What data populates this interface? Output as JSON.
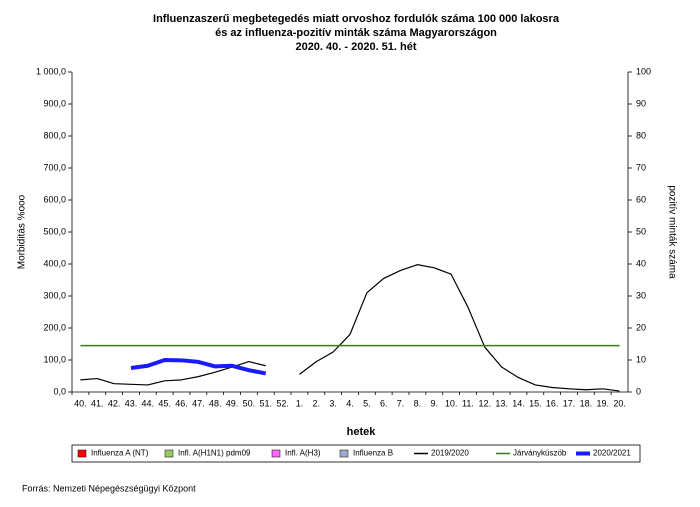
{
  "chart_data": {
    "type": "line",
    "title": [
      "Influenzaszerű megbetegedés miatt orvoshoz fordulók száma 100 000 lakosra",
      "és az influenza-pozitív minták száma Magyarországon",
      "2020. 40. - 2020. 51. hét"
    ],
    "xlabel": "hetek",
    "ylabel": "Morbiditás %ooo",
    "y2label": "pozitív minták száma",
    "source": "Forrás: Nemzeti Népegészségügyi Központ",
    "categories": [
      "40.",
      "41.",
      "42.",
      "43.",
      "44.",
      "45.",
      "46.",
      "47.",
      "48.",
      "49.",
      "50.",
      "51.",
      "52.",
      "1.",
      "2.",
      "3.",
      "4.",
      "5.",
      "6.",
      "7.",
      "8.",
      "9.",
      "10.",
      "11.",
      "12.",
      "13.",
      "14.",
      "15.",
      "16.",
      "17.",
      "18.",
      "19.",
      "20."
    ],
    "ylim": [
      0,
      1000
    ],
    "yticks": [
      {
        "value": 0,
        "label": "0,0"
      },
      {
        "value": 100,
        "label": "100,0"
      },
      {
        "value": 200,
        "label": "200,0"
      },
      {
        "value": 300,
        "label": "300,0"
      },
      {
        "value": 400,
        "label": "400,0"
      },
      {
        "value": 500,
        "label": "500,0"
      },
      {
        "value": 600,
        "label": "600,0"
      },
      {
        "value": 700,
        "label": "700,0"
      },
      {
        "value": 800,
        "label": "800,0"
      },
      {
        "value": 900,
        "label": "900,0"
      },
      {
        "value": 1000,
        "label": "1 000,0"
      }
    ],
    "y2lim": [
      0,
      100
    ],
    "y2ticks": [
      0,
      10,
      20,
      30,
      40,
      50,
      60,
      70,
      80,
      90,
      100
    ],
    "series": [
      {
        "name": "Influenza A (NT)",
        "color": "#ff0000",
        "kind": "bar",
        "axis": "y2",
        "values": [
          null,
          null,
          null,
          null,
          null,
          null,
          null,
          null,
          null,
          null,
          null,
          null,
          null,
          null,
          null,
          null,
          null,
          null,
          null,
          null,
          null,
          null,
          null,
          null,
          null,
          null,
          null,
          null,
          null,
          null,
          null,
          null,
          null
        ]
      },
      {
        "name": "Infl. A(H1N1) pdm09",
        "color": "#99cc66",
        "kind": "bar",
        "axis": "y2",
        "values": [
          null,
          null,
          null,
          null,
          null,
          null,
          null,
          null,
          null,
          null,
          null,
          null,
          null,
          null,
          null,
          null,
          null,
          null,
          null,
          null,
          null,
          null,
          null,
          null,
          null,
          null,
          null,
          null,
          null,
          null,
          null,
          null,
          null
        ]
      },
      {
        "name": "Infl. A(H3)",
        "color": "#ff66ff",
        "kind": "bar",
        "axis": "y2",
        "values": [
          null,
          null,
          null,
          null,
          null,
          null,
          null,
          null,
          null,
          null,
          null,
          null,
          null,
          null,
          null,
          null,
          null,
          null,
          null,
          null,
          null,
          null,
          null,
          null,
          null,
          null,
          null,
          null,
          null,
          null,
          null,
          null,
          null
        ]
      },
      {
        "name": "Influenza B",
        "color": "#99aacc",
        "kind": "bar",
        "axis": "y2",
        "values": [
          null,
          null,
          null,
          null,
          null,
          null,
          null,
          null,
          null,
          null,
          null,
          null,
          null,
          null,
          null,
          null,
          null,
          null,
          null,
          null,
          null,
          null,
          null,
          null,
          null,
          null,
          null,
          null,
          null,
          null,
          null,
          null,
          null
        ]
      },
      {
        "name": "2019/2020",
        "color": "#000000",
        "kind": "line",
        "values": [
          38,
          42,
          26,
          24,
          22,
          35,
          38,
          48,
          62,
          78,
          95,
          82,
          null,
          55,
          95,
          125,
          180,
          310,
          355,
          380,
          398,
          388,
          368,
          265,
          140,
          78,
          45,
          22,
          14,
          10,
          7,
          10,
          3
        ]
      },
      {
        "name": "Járványküszöb",
        "color": "#3a7a1a",
        "kind": "line",
        "values": [
          145,
          145,
          145,
          145,
          145,
          145,
          145,
          145,
          145,
          145,
          145,
          145,
          145,
          145,
          145,
          145,
          145,
          145,
          145,
          145,
          145,
          145,
          145,
          145,
          145,
          145,
          145,
          145,
          145,
          145,
          145,
          145,
          145
        ]
      },
      {
        "name": "2020/2021",
        "color": "#1a1aff",
        "kind": "line",
        "values": [
          null,
          null,
          null,
          75,
          82,
          100,
          99,
          94,
          80,
          82,
          68,
          58,
          null,
          null,
          null,
          null,
          null,
          null,
          null,
          null,
          null,
          null,
          null,
          null,
          null,
          null,
          null,
          null,
          null,
          null,
          null,
          null,
          null
        ]
      }
    ]
  }
}
